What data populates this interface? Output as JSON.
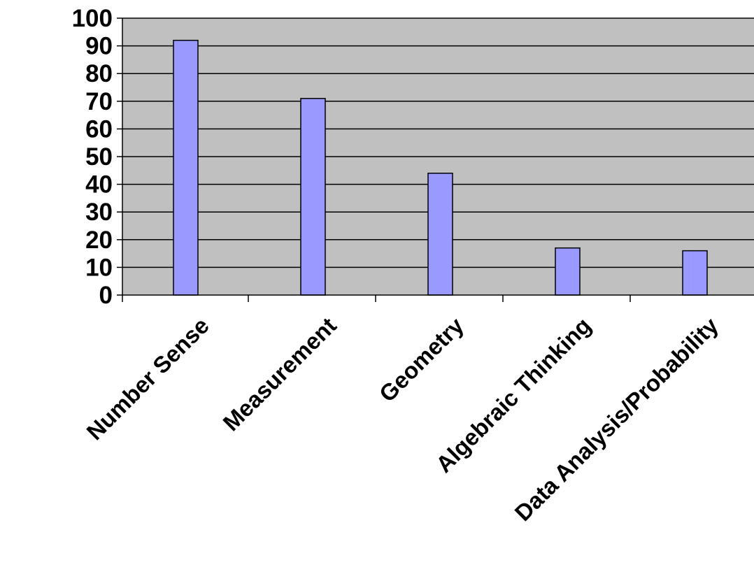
{
  "colors": {
    "plot_background": "#c0c0c0",
    "bar_fill": "#9999ff",
    "bar_stroke": "#000000",
    "gridline": "#000000",
    "axis": "#000000",
    "page_background": "#ffffff"
  },
  "chart_data": {
    "type": "bar",
    "title": "",
    "xlabel": "",
    "ylabel": "",
    "categories": [
      "Number Sense",
      "Measurement",
      "Geometry",
      "Algebraic Thinking",
      "Data Analysis/Probability"
    ],
    "values": [
      92,
      71,
      44,
      17,
      16
    ],
    "ylim": [
      0,
      100
    ],
    "yticks": [
      0,
      10,
      20,
      30,
      40,
      50,
      60,
      70,
      80,
      90,
      100
    ],
    "ytick_labels": [
      "0",
      "10",
      "20",
      "30",
      "40",
      "50",
      "60",
      "70",
      "80",
      "90",
      "100"
    ],
    "grid": true,
    "legend": "none"
  }
}
